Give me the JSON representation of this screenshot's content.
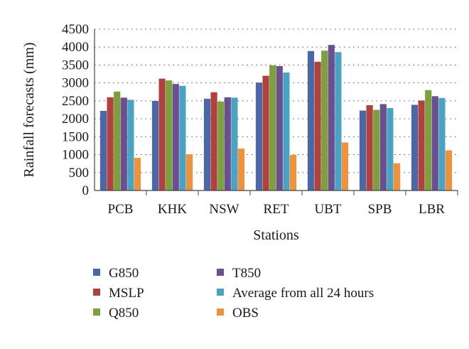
{
  "chart_data": {
    "type": "bar",
    "title": "",
    "xlabel": "Stations",
    "ylabel": "Rainfall forecasts (mm)",
    "ylim": [
      0,
      4500
    ],
    "yticks": [
      0,
      500,
      1000,
      1500,
      2000,
      2500,
      3000,
      3500,
      4000,
      4500
    ],
    "grid": "horizontal dotted",
    "legend_position": "bottom",
    "categories": [
      "PCB",
      "KHK",
      "NSW",
      "RET",
      "UBT",
      "SPB",
      "LBR"
    ],
    "series": [
      {
        "name": "G850",
        "color": "#4a67a8",
        "values": [
          2220,
          2500,
          2560,
          3010,
          3890,
          2230,
          2390
        ]
      },
      {
        "name": "MSLP",
        "color": "#b0413e",
        "values": [
          2600,
          3120,
          2740,
          3200,
          3590,
          2380,
          2510
        ]
      },
      {
        "name": "Q850",
        "color": "#7da03f",
        "values": [
          2760,
          3070,
          2480,
          3490,
          3900,
          2250,
          2800
        ]
      },
      {
        "name": "T850",
        "color": "#6c4f8f",
        "values": [
          2590,
          2970,
          2600,
          3470,
          4060,
          2410,
          2630
        ]
      },
      {
        "name": "Average from all 24 hours",
        "color": "#4aa3c3",
        "values": [
          2530,
          2920,
          2590,
          3290,
          3860,
          2300,
          2580
        ]
      },
      {
        "name": "OBS",
        "color": "#f0923c",
        "values": [
          910,
          1010,
          1170,
          990,
          1340,
          760,
          1120
        ]
      }
    ]
  }
}
